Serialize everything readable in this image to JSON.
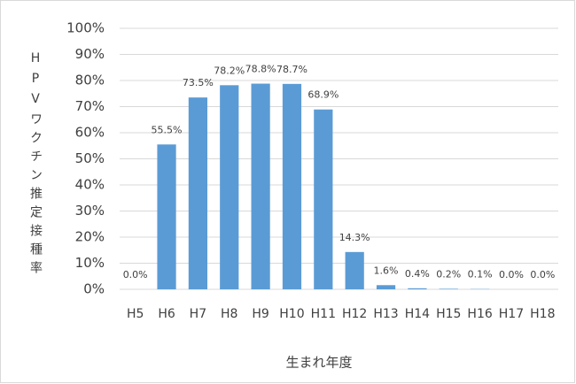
{
  "chart_data": {
    "type": "bar",
    "x_label": "生まれ年度",
    "y_label": "HPVワクチン推定接種率",
    "categories": [
      "H5",
      "H6",
      "H7",
      "H8",
      "H9",
      "H10",
      "H11",
      "H12",
      "H13",
      "H14",
      "H15",
      "H16",
      "H17",
      "H18"
    ],
    "values": [
      0,
      55.5,
      73.5,
      78.2,
      78.8,
      78.7,
      68.9,
      14.3,
      1.6,
      0.4,
      0.2,
      0.1,
      0,
      0
    ],
    "value_labels": [
      "0.0%",
      "55.5%",
      "73.5%",
      "78.2%",
      "78.8%",
      "78.7%",
      "68.9%",
      "14.3%",
      "1.6%",
      "0.4%",
      "0.2%",
      "0.1%",
      "0.0%",
      "0.0%"
    ],
    "color": "#5b9bd5",
    "ylim": [
      0,
      100
    ],
    "yticks": [
      {
        "value": 0,
        "label": "0%"
      },
      {
        "value": 10,
        "label": "10%"
      },
      {
        "value": 20,
        "label": "20%"
      },
      {
        "value": 30,
        "label": "30%"
      },
      {
        "value": 40,
        "label": "40%"
      },
      {
        "value": 50,
        "label": "50%"
      },
      {
        "value": 60,
        "label": "60%"
      },
      {
        "value": 70,
        "label": "70%"
      },
      {
        "value": 80,
        "label": "80%"
      },
      {
        "value": 90,
        "label": "90%"
      },
      {
        "value": 100,
        "label": "100%"
      }
    ],
    "grid": true
  }
}
